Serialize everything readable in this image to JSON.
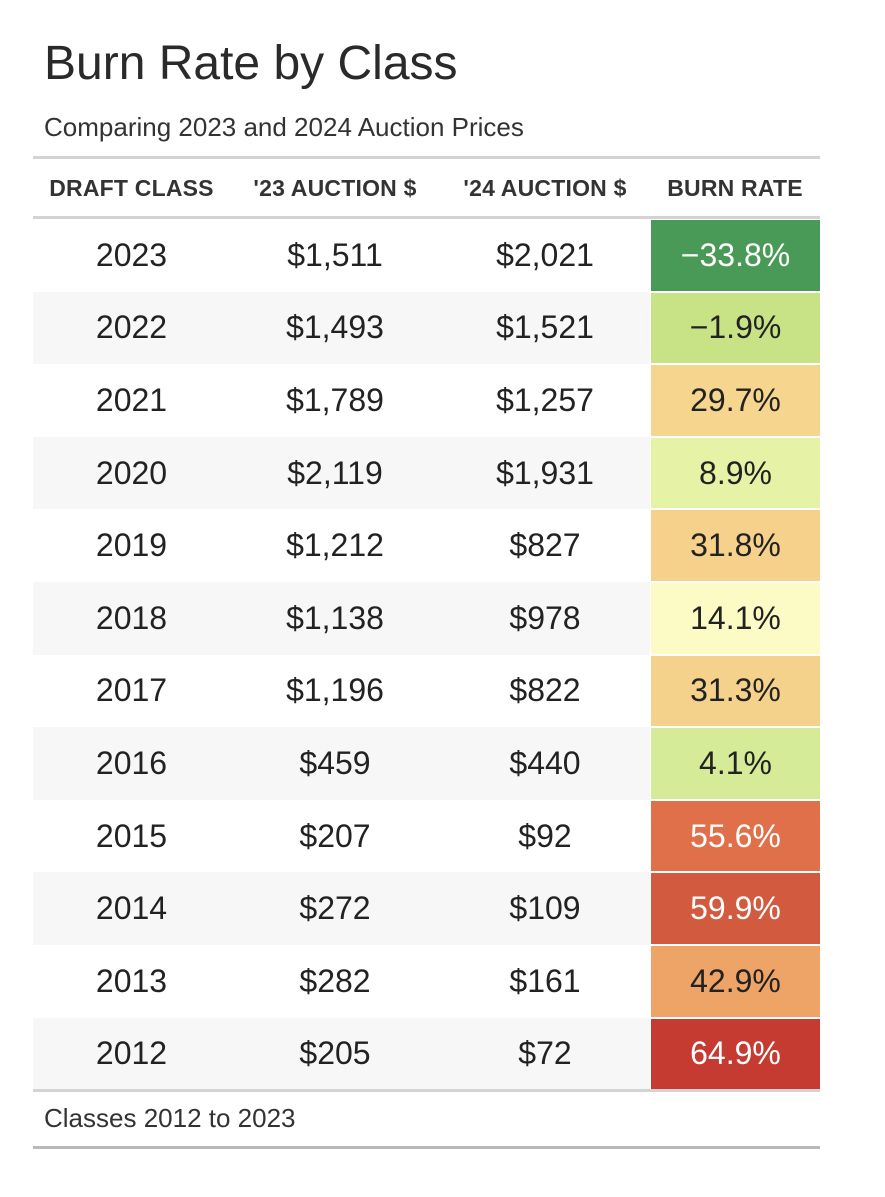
{
  "title": "Burn Rate by Class",
  "subtitle": "Comparing 2023 and 2024 Auction Prices",
  "footnote": "Classes 2012 to 2023",
  "columns": {
    "draft_class": "DRAFT CLASS",
    "auction_23": "'23 AUCTION $",
    "auction_24": "'24 AUCTION $",
    "burn_rate": "BURN RATE"
  },
  "colors": {
    "dark_green": "#4a9a57",
    "light_green": "#c8e386",
    "pale_green": "#e6f3a6",
    "pale_yellow": "#fcfbc6",
    "orange_light": "#f6d58f",
    "orange": "#eea467",
    "red_orange": "#e0704a",
    "red": "#d25a3f",
    "dark_red": "#c63b31"
  },
  "chart_data": {
    "type": "table",
    "title": "Burn Rate by Class",
    "subtitle": "Comparing 2023 and 2024 Auction Prices",
    "rows": [
      {
        "draft_class": "2023",
        "auction_23": "$1,511",
        "auction_24": "$2,021",
        "burn_rate": "−33.8%",
        "burn_value": -33.8,
        "color": "#4a9a57",
        "text_color": "#ffffff"
      },
      {
        "draft_class": "2022",
        "auction_23": "$1,493",
        "auction_24": "$1,521",
        "burn_rate": "−1.9%",
        "burn_value": -1.9,
        "color": "#c8e386",
        "text_color": "#222222"
      },
      {
        "draft_class": "2021",
        "auction_23": "$1,789",
        "auction_24": "$1,257",
        "burn_rate": "29.7%",
        "burn_value": 29.7,
        "color": "#f6d58f",
        "text_color": "#222222"
      },
      {
        "draft_class": "2020",
        "auction_23": "$2,119",
        "auction_24": "$1,931",
        "burn_rate": "8.9%",
        "burn_value": 8.9,
        "color": "#e6f3a6",
        "text_color": "#222222"
      },
      {
        "draft_class": "2019",
        "auction_23": "$1,212",
        "auction_24": "$827",
        "burn_rate": "31.8%",
        "burn_value": 31.8,
        "color": "#f5d18b",
        "text_color": "#222222"
      },
      {
        "draft_class": "2018",
        "auction_23": "$1,138",
        "auction_24": "$978",
        "burn_rate": "14.1%",
        "burn_value": 14.1,
        "color": "#fcfbc6",
        "text_color": "#222222"
      },
      {
        "draft_class": "2017",
        "auction_23": "$1,196",
        "auction_24": "$822",
        "burn_rate": "31.3%",
        "burn_value": 31.3,
        "color": "#f5d28c",
        "text_color": "#222222"
      },
      {
        "draft_class": "2016",
        "auction_23": "$459",
        "auction_24": "$440",
        "burn_rate": "4.1%",
        "burn_value": 4.1,
        "color": "#d6eb98",
        "text_color": "#222222"
      },
      {
        "draft_class": "2015",
        "auction_23": "$207",
        "auction_24": "$92",
        "burn_rate": "55.6%",
        "burn_value": 55.6,
        "color": "#e0704a",
        "text_color": "#ffffff"
      },
      {
        "draft_class": "2014",
        "auction_23": "$272",
        "auction_24": "$109",
        "burn_rate": "59.9%",
        "burn_value": 59.9,
        "color": "#d25a3f",
        "text_color": "#ffffff"
      },
      {
        "draft_class": "2013",
        "auction_23": "$282",
        "auction_24": "$161",
        "burn_rate": "42.9%",
        "burn_value": 42.9,
        "color": "#eea467",
        "text_color": "#222222"
      },
      {
        "draft_class": "2012",
        "auction_23": "$205",
        "auction_24": "$72",
        "burn_rate": "64.9%",
        "burn_value": 64.9,
        "color": "#c63b31",
        "text_color": "#ffffff"
      }
    ]
  }
}
